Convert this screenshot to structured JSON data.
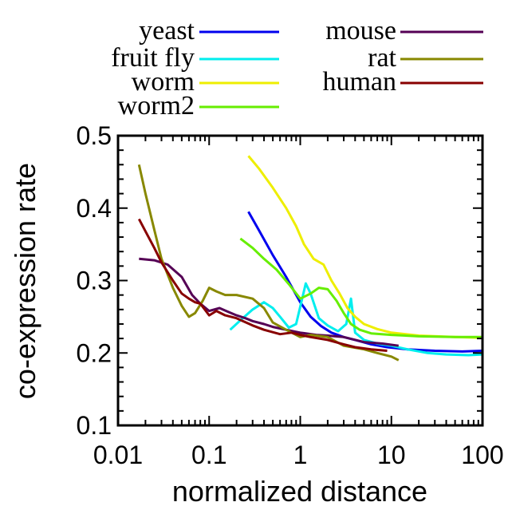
{
  "chart_data": {
    "type": "line",
    "title": "",
    "xlabel": "normalized distance",
    "ylabel": "co-expression rate",
    "x_scale": "log",
    "xlim": [
      0.01,
      100
    ],
    "ylim": [
      0.1,
      0.5
    ],
    "x_ticks": [
      {
        "value": 0.01,
        "label": "0.01"
      },
      {
        "value": 0.1,
        "label": "0.1"
      },
      {
        "value": 1,
        "label": "1"
      },
      {
        "value": 10,
        "label": "10"
      },
      {
        "value": 100,
        "label": "100"
      }
    ],
    "y_ticks": [
      {
        "value": 0.1,
        "label": "0.1"
      },
      {
        "value": 0.2,
        "label": "0.2"
      },
      {
        "value": 0.3,
        "label": "0.3"
      },
      {
        "value": 0.4,
        "label": "0.4"
      },
      {
        "value": 0.5,
        "label": "0.5"
      }
    ],
    "grid": false,
    "legend_position": "above plot, two columns",
    "series": [
      {
        "name": "yeast",
        "color": "#0000ee",
        "points": [
          [
            0.27,
            0.395
          ],
          [
            0.35,
            0.37
          ],
          [
            0.5,
            0.335
          ],
          [
            0.7,
            0.305
          ],
          [
            1.0,
            0.27
          ],
          [
            1.3,
            0.25
          ],
          [
            1.7,
            0.237
          ],
          [
            2.2,
            0.228
          ],
          [
            3.0,
            0.222
          ],
          [
            4.0,
            0.218
          ],
          [
            6.0,
            0.212
          ],
          [
            9.0,
            0.208
          ],
          [
            15,
            0.205
          ],
          [
            30,
            0.203
          ],
          [
            60,
            0.202
          ],
          [
            100,
            0.203
          ]
        ]
      },
      {
        "name": "fruit fly",
        "color": "#00eeee",
        "points": [
          [
            0.17,
            0.232
          ],
          [
            0.22,
            0.245
          ],
          [
            0.3,
            0.26
          ],
          [
            0.4,
            0.27
          ],
          [
            0.5,
            0.262
          ],
          [
            0.6,
            0.25
          ],
          [
            0.75,
            0.235
          ],
          [
            0.9,
            0.24
          ],
          [
            1.05,
            0.275
          ],
          [
            1.15,
            0.296
          ],
          [
            1.3,
            0.282
          ],
          [
            1.6,
            0.248
          ],
          [
            2.0,
            0.238
          ],
          [
            2.6,
            0.23
          ],
          [
            3.2,
            0.24
          ],
          [
            3.6,
            0.275
          ],
          [
            4.0,
            0.228
          ],
          [
            5.0,
            0.218
          ],
          [
            7.0,
            0.213
          ],
          [
            10,
            0.21
          ],
          [
            15,
            0.205
          ],
          [
            25,
            0.2
          ],
          [
            40,
            0.198
          ],
          [
            70,
            0.197
          ],
          [
            100,
            0.198
          ]
        ]
      },
      {
        "name": "worm",
        "color": "#eeee00",
        "points": [
          [
            0.27,
            0.472
          ],
          [
            0.35,
            0.455
          ],
          [
            0.5,
            0.428
          ],
          [
            0.7,
            0.4
          ],
          [
            0.9,
            0.375
          ],
          [
            1.1,
            0.35
          ],
          [
            1.4,
            0.33
          ],
          [
            1.8,
            0.322
          ],
          [
            2.2,
            0.3
          ],
          [
            2.7,
            0.282
          ],
          [
            3.3,
            0.262
          ],
          [
            4.0,
            0.25
          ],
          [
            5.0,
            0.24
          ],
          [
            7.0,
            0.233
          ],
          [
            10,
            0.228
          ],
          [
            20,
            0.224
          ],
          [
            50,
            0.222
          ],
          [
            100,
            0.221
          ]
        ]
      },
      {
        "name": "worm2",
        "color": "#66ee00",
        "points": [
          [
            0.22,
            0.358
          ],
          [
            0.3,
            0.345
          ],
          [
            0.4,
            0.33
          ],
          [
            0.55,
            0.315
          ],
          [
            0.75,
            0.295
          ],
          [
            1.0,
            0.275
          ],
          [
            1.3,
            0.282
          ],
          [
            1.6,
            0.29
          ],
          [
            2.0,
            0.288
          ],
          [
            2.5,
            0.272
          ],
          [
            3.0,
            0.255
          ],
          [
            3.6,
            0.24
          ],
          [
            4.5,
            0.232
          ],
          [
            6.0,
            0.227
          ],
          [
            10,
            0.225
          ],
          [
            20,
            0.223
          ],
          [
            50,
            0.222
          ],
          [
            100,
            0.222
          ]
        ]
      },
      {
        "name": "mouse",
        "color": "#550055",
        "points": [
          [
            0.017,
            0.33
          ],
          [
            0.025,
            0.328
          ],
          [
            0.035,
            0.322
          ],
          [
            0.05,
            0.305
          ],
          [
            0.065,
            0.28
          ],
          [
            0.08,
            0.268
          ],
          [
            0.1,
            0.258
          ],
          [
            0.13,
            0.262
          ],
          [
            0.16,
            0.257
          ],
          [
            0.2,
            0.252
          ],
          [
            0.25,
            0.248
          ],
          [
            0.3,
            0.244
          ],
          [
            0.4,
            0.24
          ],
          [
            0.5,
            0.236
          ],
          [
            0.7,
            0.232
          ],
          [
            1.0,
            0.228
          ],
          [
            1.5,
            0.225
          ],
          [
            2.0,
            0.224
          ],
          [
            3.0,
            0.222
          ],
          [
            5.0,
            0.215
          ],
          [
            8.0,
            0.213
          ],
          [
            12,
            0.21
          ]
        ]
      },
      {
        "name": "rat",
        "color": "#888800",
        "points": [
          [
            0.017,
            0.46
          ],
          [
            0.02,
            0.42
          ],
          [
            0.025,
            0.37
          ],
          [
            0.03,
            0.33
          ],
          [
            0.04,
            0.29
          ],
          [
            0.05,
            0.265
          ],
          [
            0.06,
            0.25
          ],
          [
            0.07,
            0.255
          ],
          [
            0.085,
            0.272
          ],
          [
            0.1,
            0.29
          ],
          [
            0.12,
            0.285
          ],
          [
            0.15,
            0.28
          ],
          [
            0.2,
            0.28
          ],
          [
            0.3,
            0.275
          ],
          [
            0.4,
            0.262
          ],
          [
            0.5,
            0.242
          ],
          [
            0.7,
            0.232
          ],
          [
            1.0,
            0.222
          ],
          [
            1.3,
            0.225
          ],
          [
            2.0,
            0.222
          ],
          [
            3.0,
            0.21
          ],
          [
            5.0,
            0.205
          ],
          [
            7.0,
            0.2
          ],
          [
            10,
            0.195
          ],
          [
            12,
            0.19
          ]
        ]
      },
      {
        "name": "human",
        "color": "#880000",
        "points": [
          [
            0.017,
            0.385
          ],
          [
            0.02,
            0.368
          ],
          [
            0.025,
            0.345
          ],
          [
            0.03,
            0.325
          ],
          [
            0.04,
            0.3
          ],
          [
            0.05,
            0.282
          ],
          [
            0.06,
            0.275
          ],
          [
            0.07,
            0.27
          ],
          [
            0.08,
            0.268
          ],
          [
            0.1,
            0.252
          ],
          [
            0.12,
            0.258
          ],
          [
            0.15,
            0.252
          ],
          [
            0.2,
            0.248
          ],
          [
            0.3,
            0.238
          ],
          [
            0.4,
            0.232
          ],
          [
            0.6,
            0.226
          ],
          [
            0.8,
            0.228
          ],
          [
            1.0,
            0.225
          ],
          [
            1.3,
            0.222
          ],
          [
            2.0,
            0.218
          ],
          [
            3.0,
            0.212
          ],
          [
            4.0,
            0.208
          ],
          [
            6.0,
            0.205
          ],
          [
            9.0,
            0.203
          ]
        ]
      }
    ]
  }
}
